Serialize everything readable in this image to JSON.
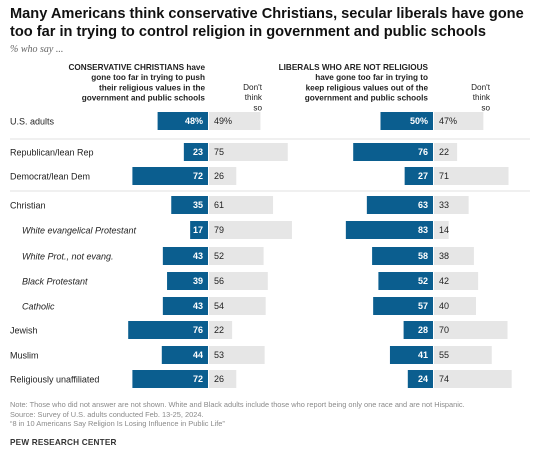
{
  "title": "Many Americans think conservative Christians, secular liberals have gone too far in trying to control religion in government and public schools",
  "subtitle": "% who say ...",
  "colors": {
    "primary": "#0b5e8f",
    "secondary": "#e6e6e6",
    "primary_text": "#ffffff",
    "secondary_text": "#222222"
  },
  "chart_data": [
    {
      "type": "bar",
      "title": "",
      "xlabel": "",
      "ylabel": "",
      "xlim": [
        0,
        100
      ],
      "headers": {
        "primary": "CONSERVATIVE CHRISTIANS have gone too far in trying to push their religious values in the government and public schools",
        "secondary": "Don't think so"
      },
      "categories": [
        "U.S. adults",
        "Republican/lean Rep",
        "Democrat/lean Dem",
        "Christian",
        "White evangelical Protestant",
        "White Prot., not evang.",
        "Black Protestant",
        "Catholic",
        "Jewish",
        "Muslim",
        "Religiously unaffiliated"
      ],
      "series": [
        {
          "name": "CONSERVATIVE CHRISTIANS have gone too far in trying to push their religious values in the government and public schools",
          "values": [
            48,
            23,
            72,
            35,
            17,
            43,
            39,
            43,
            76,
            44,
            72
          ],
          "labels": [
            "48%",
            "23",
            "72",
            "35",
            "17",
            "43",
            "39",
            "43",
            "76",
            "44",
            "72"
          ]
        },
        {
          "name": "Don't think so",
          "values": [
            49,
            75,
            26,
            61,
            79,
            52,
            56,
            54,
            22,
            53,
            26
          ],
          "labels": [
            "49%",
            "75",
            "26",
            "61",
            "79",
            "52",
            "56",
            "54",
            "22",
            "53",
            "26"
          ]
        }
      ]
    },
    {
      "type": "bar",
      "title": "",
      "xlabel": "",
      "ylabel": "",
      "xlim": [
        0,
        100
      ],
      "headers": {
        "primary": "LIBERALS WHO ARE NOT RELIGIOUS have gone too far in trying to keep religious values out of the government and public schools",
        "secondary": "Don't think so"
      },
      "categories": [
        "U.S. adults",
        "Republican/lean Rep",
        "Democrat/lean Dem",
        "Christian",
        "White evangelical Protestant",
        "White Prot., not evang.",
        "Black Protestant",
        "Catholic",
        "Jewish",
        "Muslim",
        "Religiously unaffiliated"
      ],
      "series": [
        {
          "name": "LIBERALS WHO ARE NOT RELIGIOUS have gone too far in trying to keep religious values out of the government and public schools",
          "values": [
            50,
            76,
            27,
            63,
            83,
            58,
            52,
            57,
            28,
            41,
            24
          ],
          "labels": [
            "50%",
            "76",
            "27",
            "63",
            "83",
            "58",
            "52",
            "57",
            "28",
            "41",
            "24"
          ]
        },
        {
          "name": "Don't think so",
          "values": [
            47,
            22,
            71,
            33,
            14,
            38,
            42,
            40,
            70,
            55,
            74
          ],
          "labels": [
            "47%",
            "22",
            "71",
            "33",
            "14",
            "38",
            "42",
            "40",
            "70",
            "55",
            "74"
          ]
        }
      ]
    }
  ],
  "notes": [
    "Note: Those who did not answer are not shown. White and Black adults include those who report being only one race and are not Hispanic.",
    "Source: Survey of U.S. adults conducted Feb. 13-25, 2024.",
    "“8 in 10 Americans Say Religion Is Losing Influence in Public Life”"
  ],
  "branding": "PEW RESEARCH CENTER"
}
